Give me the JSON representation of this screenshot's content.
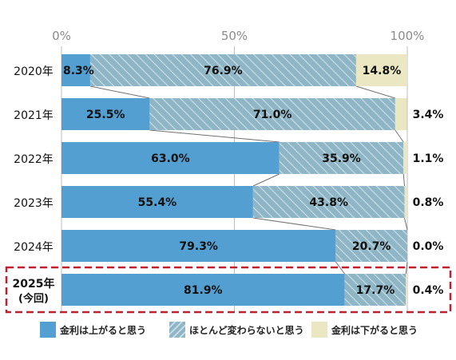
{
  "chart_data": {
    "type": "bar",
    "orientation": "horizontal",
    "stacked": true,
    "normalized_100": true,
    "x_ticks": [
      "0%",
      "50%",
      "100%"
    ],
    "xlim": [
      0,
      100
    ],
    "grid": true,
    "categories": [
      "2020年",
      "2021年",
      "2022年",
      "2023年",
      "2024年",
      "2025年"
    ],
    "categories_sub": [
      "",
      "",
      "",
      "",
      "",
      "(今回)"
    ],
    "highlight_category_index": 5,
    "series": [
      {
        "name": "金利は上がると思う",
        "color": "#549fd2",
        "pattern": "solid",
        "values": [
          8.3,
          25.5,
          63.0,
          55.4,
          79.3,
          81.9
        ],
        "labels": [
          "8.3%",
          "25.5%",
          "63.0%",
          "55.4%",
          "79.3%",
          "81.9%"
        ]
      },
      {
        "name": "ほとんど変わらないと思う",
        "color": "#8fb6c6",
        "pattern": "hatch",
        "values": [
          76.9,
          71.0,
          35.9,
          43.8,
          20.7,
          17.7
        ],
        "labels": [
          "76.9%",
          "71.0%",
          "35.9%",
          "43.8%",
          "20.7%",
          "17.7%"
        ]
      },
      {
        "name": "金利は下がると思う",
        "color": "#ebe7c2",
        "pattern": "solid",
        "values": [
          14.8,
          3.4,
          1.1,
          0.8,
          0.0,
          0.4
        ],
        "labels": [
          "14.8%",
          "3.4%",
          "1.1%",
          "0.8%",
          "0.0%",
          "0.4%"
        ]
      }
    ],
    "legend_position": "bottom"
  }
}
